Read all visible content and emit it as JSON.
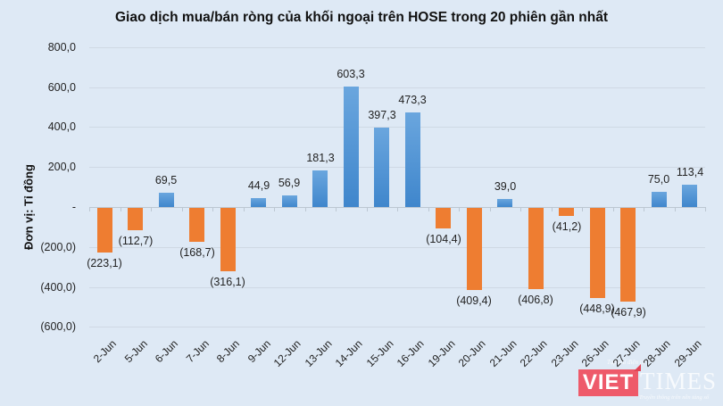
{
  "chart_data": {
    "type": "bar",
    "title": "Giao dịch mua/bán ròng của khối ngoại trên HOSE trong 20 phiên gần nhất",
    "xlabel": "",
    "ylabel": "Đơn vị: Tỉ đồng",
    "ylim": [
      -600,
      800
    ],
    "yticks": [
      800,
      600,
      400,
      200,
      0,
      -200,
      -400,
      -600
    ],
    "ytick_labels": [
      "800,0",
      "600,0",
      "400,0",
      "200,0",
      "-",
      "(200,0)",
      "(400,0)",
      "(600,0)"
    ],
    "grid": true,
    "legend": null,
    "categories": [
      "2-Jun",
      "5-Jun",
      "6-Jun",
      "7-Jun",
      "8-Jun",
      "9-Jun",
      "12-Jun",
      "13-Jun",
      "14-Jun",
      "15-Jun",
      "16-Jun",
      "19-Jun",
      "20-Jun",
      "21-Jun",
      "22-Jun",
      "23-Jun",
      "26-Jun",
      "27-Jun",
      "28-Jun",
      "29-Jun"
    ],
    "values": [
      -223.1,
      -112.7,
      69.5,
      -168.7,
      -316.1,
      44.9,
      56.9,
      181.3,
      603.3,
      397.3,
      473.3,
      -104.4,
      -409.4,
      39.0,
      -406.8,
      -41.2,
      -448.9,
      -467.9,
      75.0,
      113.4
    ],
    "data_labels": [
      "(223,1)",
      "(112,7)",
      "69,5",
      "(168,7)",
      "(316,1)",
      "44,9",
      "56,9",
      "181,3",
      "603,3",
      "397,3",
      "473,3",
      "(104,4)",
      "(409,4)",
      "39,0",
      "(406,8)",
      "(41,2)",
      "(448,9)",
      "(467,9)",
      "75,0",
      "113,4"
    ],
    "colors": {
      "positive": "#4a90d4",
      "negative": "#ee7d31",
      "background": "#dee9f5"
    }
  },
  "watermark": {
    "brand_left": "VIET",
    "brand_right": "TIMES",
    "top_text": "Tạp chí điện tử",
    "tagline": "Truyền thông trên nền tảng số"
  }
}
